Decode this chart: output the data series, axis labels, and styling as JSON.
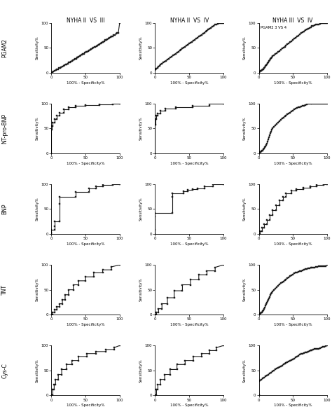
{
  "col_titles": [
    "NYHA II  VS  III",
    "NYHA II  VS  IV",
    "NYHA III  VS  IV"
  ],
  "row_labels": [
    "PGAM2",
    "NT-pro-BNP",
    "BNP",
    "TNT",
    "Cys-C"
  ],
  "annotation": "PGAM2 3 VS 4",
  "xlabel": "100% - Specificity%",
  "ylabel": "Sensitivity%",
  "yticks": [
    0,
    50,
    100
  ],
  "xticks": [
    0,
    50,
    100
  ],
  "background": "#ffffff",
  "curve_color": "#1a1a1a",
  "marker": "s",
  "markersize": 1.8,
  "linewidth": 0.8,
  "curves": {
    "PGAM2_II_III": {
      "x": [
        0,
        2,
        3,
        5,
        7,
        8,
        10,
        11,
        13,
        14,
        16,
        18,
        19,
        21,
        22,
        24,
        25,
        27,
        28,
        30,
        31,
        33,
        34,
        36,
        37,
        39,
        40,
        42,
        43,
        45,
        46,
        48,
        49,
        51,
        52,
        54,
        55,
        57,
        58,
        60,
        61,
        63,
        64,
        66,
        67,
        69,
        70,
        72,
        73,
        75,
        76,
        78,
        79,
        81,
        82,
        84,
        85,
        87,
        88,
        90,
        91,
        93,
        95,
        96,
        98,
        100
      ],
      "y": [
        0,
        1,
        2,
        4,
        5,
        6,
        7,
        9,
        10,
        11,
        12,
        13,
        15,
        16,
        17,
        18,
        20,
        21,
        22,
        23,
        25,
        26,
        27,
        28,
        30,
        31,
        32,
        33,
        35,
        36,
        37,
        38,
        40,
        41,
        42,
        43,
        45,
        46,
        47,
        48,
        50,
        51,
        52,
        53,
        55,
        56,
        57,
        58,
        60,
        61,
        62,
        63,
        65,
        66,
        67,
        68,
        70,
        71,
        72,
        73,
        75,
        76,
        78,
        79,
        80,
        100
      ]
    },
    "PGAM2_II_IV": {
      "x": [
        0,
        1,
        2,
        4,
        5,
        7,
        8,
        10,
        12,
        14,
        16,
        18,
        20,
        22,
        24,
        26,
        28,
        30,
        32,
        34,
        36,
        38,
        40,
        42,
        44,
        46,
        48,
        50,
        52,
        54,
        56,
        58,
        60,
        62,
        64,
        66,
        68,
        70,
        72,
        74,
        76,
        78,
        80,
        82,
        84,
        86,
        88,
        90,
        92,
        94,
        96,
        98,
        100
      ],
      "y": [
        5,
        6,
        8,
        10,
        12,
        14,
        16,
        18,
        20,
        22,
        24,
        26,
        28,
        30,
        32,
        34,
        36,
        38,
        40,
        42,
        44,
        46,
        48,
        50,
        52,
        54,
        56,
        58,
        60,
        62,
        64,
        66,
        68,
        70,
        72,
        74,
        76,
        78,
        80,
        82,
        84,
        86,
        88,
        90,
        92,
        94,
        96,
        97,
        98,
        99,
        99,
        99,
        100
      ]
    },
    "PGAM2_III_IV": {
      "x": [
        0,
        1,
        2,
        3,
        4,
        5,
        6,
        7,
        8,
        9,
        10,
        11,
        12,
        13,
        14,
        15,
        16,
        17,
        18,
        19,
        20,
        22,
        24,
        26,
        28,
        30,
        32,
        34,
        36,
        38,
        40,
        42,
        44,
        46,
        48,
        50,
        52,
        54,
        56,
        58,
        60,
        62,
        64,
        66,
        68,
        70,
        72,
        74,
        76,
        78,
        80,
        82,
        84,
        86,
        88,
        90,
        92,
        94,
        96,
        98,
        100
      ],
      "y": [
        0,
        1,
        2,
        3,
        4,
        5,
        6,
        7,
        9,
        11,
        13,
        15,
        17,
        19,
        21,
        23,
        25,
        27,
        29,
        31,
        33,
        35,
        37,
        39,
        41,
        43,
        46,
        48,
        50,
        52,
        55,
        57,
        59,
        61,
        63,
        66,
        68,
        70,
        72,
        74,
        77,
        79,
        81,
        83,
        85,
        87,
        88,
        89,
        91,
        93,
        94,
        95,
        96,
        97,
        97,
        98,
        99,
        99,
        99,
        99,
        100
      ]
    },
    "NTproBNP_II_III": {
      "x": [
        0,
        0,
        1,
        1,
        2,
        2,
        5,
        5,
        8,
        8,
        12,
        12,
        18,
        18,
        25,
        25,
        35,
        35,
        50,
        50,
        70,
        70,
        90,
        90,
        100
      ],
      "y": [
        0,
        48,
        48,
        55,
        55,
        62,
        62,
        68,
        68,
        75,
        75,
        82,
        82,
        88,
        88,
        92,
        92,
        95,
        95,
        97,
        97,
        98,
        98,
        100,
        100
      ]
    },
    "NTproBNP_II_IV": {
      "x": [
        0,
        0,
        1,
        1,
        2,
        2,
        4,
        4,
        8,
        8,
        15,
        15,
        30,
        30,
        55,
        55,
        80,
        80,
        100
      ],
      "y": [
        0,
        58,
        58,
        68,
        68,
        75,
        75,
        80,
        80,
        85,
        85,
        90,
        90,
        92,
        92,
        95,
        95,
        100,
        100
      ]
    },
    "NTproBNP_III_IV": {
      "x": [
        0,
        1,
        2,
        3,
        4,
        5,
        6,
        7,
        8,
        9,
        10,
        11,
        12,
        13,
        14,
        15,
        16,
        17,
        18,
        19,
        20,
        22,
        24,
        26,
        28,
        30,
        32,
        34,
        36,
        38,
        40,
        42,
        44,
        46,
        48,
        50,
        52,
        54,
        56,
        58,
        60,
        62,
        64,
        66,
        68,
        70,
        72,
        74,
        76,
        78,
        80,
        82,
        84,
        86,
        88,
        90,
        92,
        94,
        96,
        98,
        100
      ],
      "y": [
        0,
        1,
        2,
        3,
        4,
        5,
        6,
        8,
        10,
        12,
        14,
        17,
        20,
        24,
        28,
        32,
        36,
        40,
        44,
        47,
        50,
        53,
        56,
        59,
        62,
        64,
        67,
        70,
        72,
        74,
        76,
        78,
        80,
        82,
        84,
        86,
        88,
        90,
        91,
        92,
        93,
        94,
        95,
        96,
        97,
        98,
        99,
        99,
        99,
        99,
        99,
        99,
        99,
        99,
        99,
        99,
        99,
        99,
        99,
        99,
        100
      ]
    },
    "BNP_II_III": {
      "x": [
        0,
        0,
        0,
        5,
        5,
        5,
        12,
        12,
        12,
        35,
        35,
        55,
        55,
        65,
        65,
        75,
        75,
        90,
        90,
        100
      ],
      "y": [
        0,
        3,
        8,
        8,
        15,
        25,
        25,
        60,
        75,
        75,
        85,
        85,
        92,
        92,
        96,
        96,
        98,
        98,
        100,
        100
      ]
    },
    "BNP_II_IV": {
      "x": [
        0,
        0,
        0,
        0,
        25,
        25,
        25,
        42,
        42,
        48,
        48,
        55,
        55,
        62,
        62,
        72,
        72,
        85,
        85,
        100
      ],
      "y": [
        0,
        8,
        35,
        42,
        42,
        75,
        82,
        82,
        86,
        86,
        88,
        88,
        90,
        90,
        92,
        92,
        95,
        95,
        100,
        100
      ]
    },
    "BNP_III_IV": {
      "x": [
        0,
        2,
        2,
        5,
        5,
        8,
        8,
        12,
        12,
        16,
        16,
        20,
        20,
        25,
        25,
        30,
        30,
        35,
        35,
        40,
        40,
        48,
        48,
        55,
        55,
        65,
        65,
        75,
        75,
        85,
        85,
        95,
        95,
        100
      ],
      "y": [
        0,
        0,
        5,
        5,
        12,
        12,
        20,
        20,
        28,
        28,
        38,
        38,
        48,
        48,
        58,
        58,
        67,
        67,
        75,
        75,
        82,
        82,
        87,
        87,
        90,
        90,
        93,
        93,
        96,
        96,
        98,
        98,
        100,
        100
      ]
    },
    "TNT_II_III": {
      "x": [
        0,
        2,
        2,
        5,
        5,
        8,
        8,
        12,
        12,
        16,
        16,
        20,
        20,
        25,
        25,
        32,
        32,
        40,
        40,
        50,
        50,
        62,
        62,
        75,
        75,
        88,
        88,
        100
      ],
      "y": [
        0,
        0,
        5,
        5,
        10,
        10,
        16,
        16,
        22,
        22,
        30,
        30,
        40,
        40,
        50,
        50,
        60,
        60,
        68,
        68,
        76,
        76,
        84,
        84,
        90,
        90,
        96,
        100
      ]
    },
    "TNT_II_IV": {
      "x": [
        0,
        2,
        2,
        5,
        5,
        10,
        10,
        18,
        18,
        28,
        28,
        40,
        40,
        52,
        52,
        64,
        64,
        76,
        76,
        88,
        88,
        100
      ],
      "y": [
        0,
        0,
        5,
        5,
        12,
        12,
        22,
        22,
        34,
        34,
        48,
        48,
        60,
        60,
        70,
        70,
        80,
        80,
        88,
        88,
        95,
        100
      ]
    },
    "TNT_III_IV": {
      "x": [
        0,
        1,
        2,
        3,
        4,
        5,
        6,
        7,
        8,
        9,
        10,
        11,
        12,
        13,
        14,
        15,
        16,
        17,
        18,
        19,
        20,
        22,
        24,
        26,
        28,
        30,
        32,
        34,
        36,
        38,
        40,
        42,
        44,
        46,
        48,
        50,
        52,
        54,
        56,
        58,
        60,
        62,
        64,
        66,
        68,
        70,
        72,
        74,
        76,
        78,
        80,
        82,
        84,
        86,
        88,
        90,
        92,
        94,
        96,
        98,
        100
      ],
      "y": [
        0,
        1,
        2,
        3,
        4,
        5,
        7,
        9,
        12,
        15,
        18,
        21,
        24,
        27,
        30,
        33,
        36,
        39,
        42,
        44,
        46,
        49,
        52,
        55,
        58,
        61,
        63,
        65,
        67,
        69,
        71,
        73,
        75,
        77,
        79,
        81,
        83,
        84,
        85,
        86,
        87,
        88,
        89,
        90,
        91,
        92,
        93,
        93,
        94,
        94,
        95,
        95,
        96,
        96,
        97,
        97,
        97,
        98,
        98,
        98,
        100
      ]
    },
    "CysC_II_III": {
      "x": [
        0,
        2,
        2,
        4,
        4,
        6,
        6,
        10,
        10,
        15,
        15,
        22,
        22,
        30,
        30,
        40,
        40,
        52,
        52,
        65,
        65,
        80,
        80,
        92,
        92,
        100
      ],
      "y": [
        0,
        0,
        12,
        12,
        22,
        22,
        32,
        32,
        42,
        42,
        52,
        52,
        62,
        62,
        70,
        70,
        78,
        78,
        84,
        84,
        88,
        88,
        92,
        92,
        96,
        100
      ]
    },
    "CysC_II_IV": {
      "x": [
        0,
        2,
        2,
        4,
        4,
        8,
        8,
        14,
        14,
        22,
        22,
        32,
        32,
        44,
        44,
        56,
        56,
        68,
        68,
        80,
        80,
        90,
        90,
        100
      ],
      "y": [
        0,
        0,
        12,
        12,
        22,
        22,
        32,
        32,
        42,
        42,
        52,
        52,
        62,
        62,
        70,
        70,
        78,
        78,
        84,
        84,
        90,
        90,
        96,
        100
      ]
    },
    "CysC_III_IV": {
      "x": [
        0,
        0,
        2,
        4,
        6,
        8,
        10,
        12,
        14,
        16,
        18,
        20,
        22,
        24,
        26,
        28,
        30,
        32,
        34,
        36,
        38,
        40,
        42,
        44,
        46,
        48,
        50,
        52,
        54,
        56,
        58,
        60,
        62,
        64,
        66,
        68,
        70,
        72,
        74,
        76,
        78,
        80,
        82,
        84,
        86,
        88,
        90,
        92,
        94,
        96,
        98,
        100
      ],
      "y": [
        0,
        28,
        30,
        32,
        34,
        36,
        38,
        40,
        42,
        44,
        46,
        48,
        50,
        52,
        54,
        56,
        57,
        58,
        60,
        62,
        64,
        65,
        67,
        68,
        70,
        71,
        72,
        74,
        76,
        78,
        80,
        82,
        83,
        84,
        85,
        86,
        87,
        88,
        89,
        90,
        91,
        92,
        93,
        93,
        94,
        94,
        95,
        96,
        97,
        98,
        99,
        100
      ]
    }
  }
}
